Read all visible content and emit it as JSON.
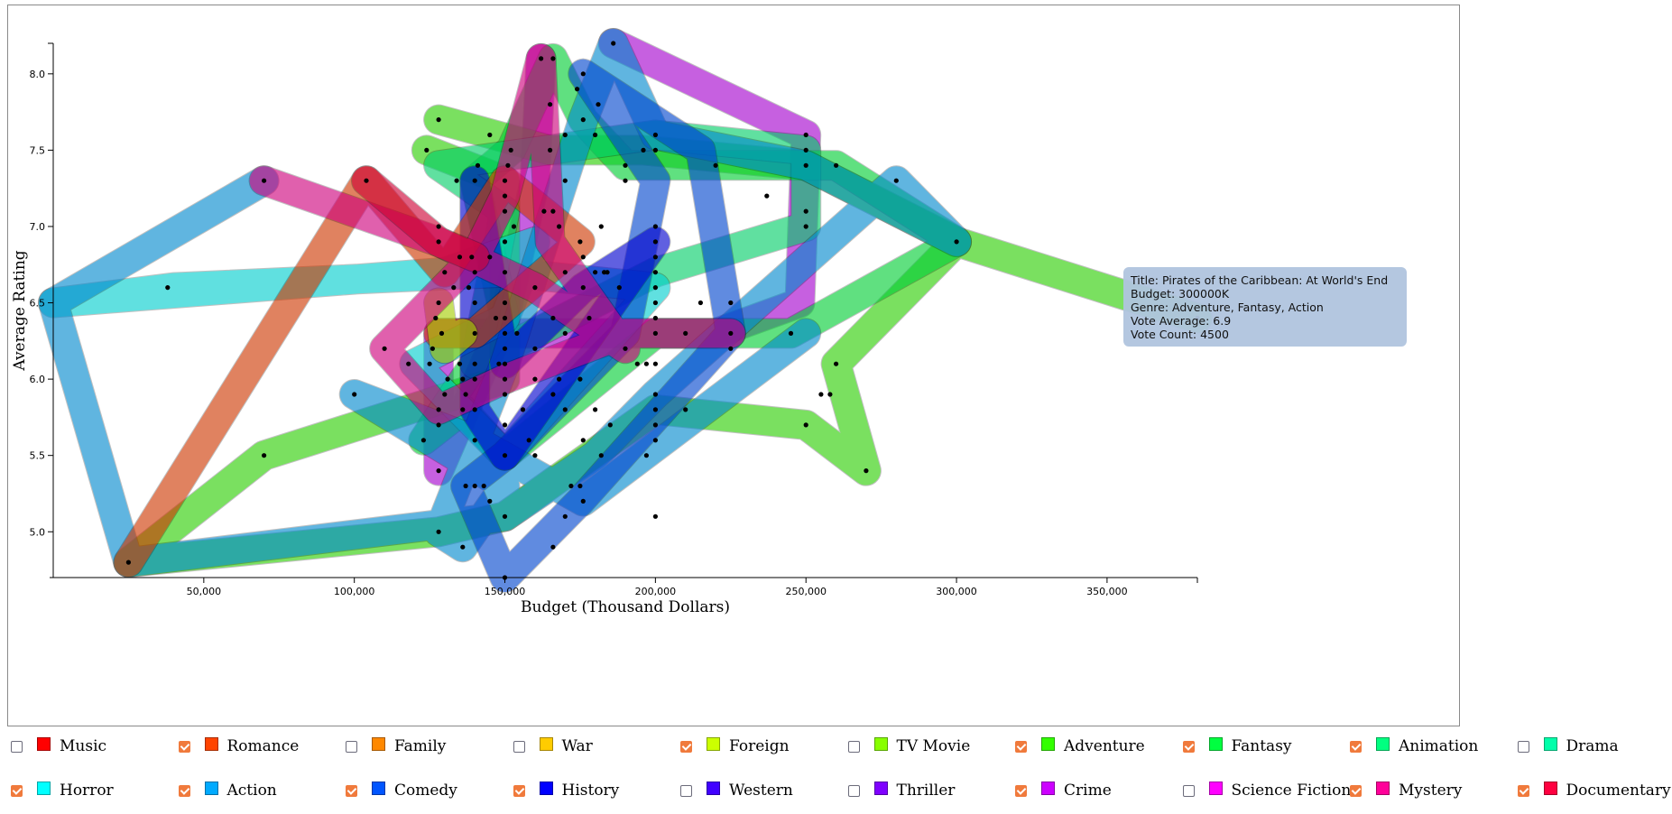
{
  "chart_data": {
    "type": "scatter",
    "xlabel": "Budget (Thousand Dollars)",
    "ylabel": "Average Rating",
    "xlim": [
      0,
      380000
    ],
    "ylim": [
      4.7,
      8.2
    ],
    "x_ticks": [
      50000,
      100000,
      150000,
      200000,
      250000,
      300000,
      350000
    ],
    "x_tick_labels": [
      "50,000",
      "100,000",
      "150,000",
      "200,000",
      "250,000",
      "300,000",
      "350,000"
    ],
    "y_ticks": [
      5.0,
      5.5,
      6.0,
      6.5,
      7.0,
      7.5,
      8.0
    ],
    "y_tick_labels": [
      "5.0",
      "5.5",
      "6.0",
      "6.5",
      "7.0",
      "7.5",
      "8.0"
    ],
    "grid": false,
    "points": [
      [
        25000,
        4.8
      ],
      [
        38000,
        6.6
      ],
      [
        70000,
        7.3
      ],
      [
        70000,
        5.5
      ],
      [
        100000,
        5.9
      ],
      [
        104000,
        7.3
      ],
      [
        110000,
        6.2
      ],
      [
        118000,
        6.1
      ],
      [
        123000,
        5.6
      ],
      [
        124000,
        7.5
      ],
      [
        125000,
        6.1
      ],
      [
        126000,
        6.2
      ],
      [
        127000,
        6.4
      ],
      [
        128000,
        5.0
      ],
      [
        128000,
        7.7
      ],
      [
        128000,
        5.4
      ],
      [
        128000,
        6.9
      ],
      [
        128000,
        7.0
      ],
      [
        128000,
        6.5
      ],
      [
        128000,
        5.8
      ],
      [
        128000,
        5.7
      ],
      [
        129000,
        6.3
      ],
      [
        130000,
        5.9
      ],
      [
        130000,
        6.7
      ],
      [
        131000,
        6.0
      ],
      [
        133000,
        6.6
      ],
      [
        134000,
        7.3
      ],
      [
        135000,
        6.8
      ],
      [
        135000,
        6.1
      ],
      [
        136000,
        4.9
      ],
      [
        136000,
        6.0
      ],
      [
        136000,
        5.8
      ],
      [
        137000,
        5.9
      ],
      [
        137000,
        5.3
      ],
      [
        138000,
        6.6
      ],
      [
        139000,
        6.8
      ],
      [
        140000,
        7.3
      ],
      [
        140000,
        6.7
      ],
      [
        140000,
        6.5
      ],
      [
        140000,
        6.3
      ],
      [
        140000,
        6.1
      ],
      [
        140000,
        6.0
      ],
      [
        140000,
        5.8
      ],
      [
        140000,
        5.6
      ],
      [
        140000,
        5.3
      ],
      [
        141000,
        7.4
      ],
      [
        143000,
        5.3
      ],
      [
        145000,
        7.6
      ],
      [
        145000,
        6.8
      ],
      [
        145000,
        5.2
      ],
      [
        147000,
        6.4
      ],
      [
        148000,
        6.1
      ],
      [
        150000,
        7.3
      ],
      [
        150000,
        7.2
      ],
      [
        150000,
        7.1
      ],
      [
        150000,
        6.9
      ],
      [
        150000,
        6.7
      ],
      [
        150000,
        6.5
      ],
      [
        150000,
        6.4
      ],
      [
        150000,
        6.3
      ],
      [
        150000,
        6.2
      ],
      [
        150000,
        6.1
      ],
      [
        150000,
        6.0
      ],
      [
        150000,
        5.9
      ],
      [
        150000,
        5.7
      ],
      [
        150000,
        5.5
      ],
      [
        150000,
        5.1
      ],
      [
        150000,
        4.7
      ],
      [
        151000,
        7.4
      ],
      [
        152000,
        7.5
      ],
      [
        153000,
        7.0
      ],
      [
        154000,
        6.3
      ],
      [
        156000,
        5.8
      ],
      [
        158000,
        5.6
      ],
      [
        160000,
        6.6
      ],
      [
        160000,
        6.2
      ],
      [
        160000,
        6.0
      ],
      [
        160000,
        5.5
      ],
      [
        162000,
        8.1
      ],
      [
        163000,
        7.1
      ],
      [
        165000,
        7.8
      ],
      [
        165000,
        7.5
      ],
      [
        166000,
        8.1
      ],
      [
        166000,
        7.1
      ],
      [
        166000,
        6.4
      ],
      [
        166000,
        5.9
      ],
      [
        166000,
        4.9
      ],
      [
        168000,
        7.0
      ],
      [
        168000,
        6.0
      ],
      [
        170000,
        7.6
      ],
      [
        170000,
        7.3
      ],
      [
        170000,
        6.7
      ],
      [
        170000,
        6.3
      ],
      [
        170000,
        5.8
      ],
      [
        170000,
        5.1
      ],
      [
        172000,
        5.3
      ],
      [
        174000,
        7.9
      ],
      [
        175000,
        6.0
      ],
      [
        175000,
        6.9
      ],
      [
        175000,
        5.3
      ],
      [
        176000,
        8.0
      ],
      [
        176000,
        7.7
      ],
      [
        176000,
        6.8
      ],
      [
        176000,
        6.6
      ],
      [
        176000,
        5.6
      ],
      [
        176000,
        5.2
      ],
      [
        178000,
        6.4
      ],
      [
        180000,
        7.6
      ],
      [
        180000,
        5.8
      ],
      [
        180000,
        6.7
      ],
      [
        181000,
        7.8
      ],
      [
        182000,
        7.0
      ],
      [
        182000,
        5.5
      ],
      [
        183000,
        6.7
      ],
      [
        184000,
        6.7
      ],
      [
        185000,
        5.7
      ],
      [
        186000,
        8.2
      ],
      [
        188000,
        6.6
      ],
      [
        190000,
        7.4
      ],
      [
        190000,
        7.3
      ],
      [
        190000,
        6.2
      ],
      [
        194000,
        6.1
      ],
      [
        196000,
        7.5
      ],
      [
        197000,
        6.1
      ],
      [
        197000,
        5.5
      ],
      [
        200000,
        7.6
      ],
      [
        200000,
        7.0
      ],
      [
        200000,
        6.9
      ],
      [
        200000,
        6.8
      ],
      [
        200000,
        6.7
      ],
      [
        200000,
        6.6
      ],
      [
        200000,
        6.5
      ],
      [
        200000,
        6.4
      ],
      [
        200000,
        6.3
      ],
      [
        200000,
        6.1
      ],
      [
        200000,
        5.9
      ],
      [
        200000,
        5.8
      ],
      [
        200000,
        5.7
      ],
      [
        200000,
        5.6
      ],
      [
        200000,
        5.1
      ],
      [
        200000,
        7.5
      ],
      [
        210000,
        6.3
      ],
      [
        210000,
        5.8
      ],
      [
        215000,
        6.5
      ],
      [
        220000,
        7.4
      ],
      [
        225000,
        6.2
      ],
      [
        225000,
        6.3
      ],
      [
        225000,
        6.5
      ],
      [
        237000,
        7.2
      ],
      [
        245000,
        6.3
      ],
      [
        250000,
        7.6
      ],
      [
        250000,
        7.5
      ],
      [
        250000,
        7.4
      ],
      [
        250000,
        7.1
      ],
      [
        250000,
        7.0
      ],
      [
        250000,
        5.7
      ],
      [
        255000,
        5.9
      ],
      [
        258000,
        5.9
      ],
      [
        260000,
        6.1
      ],
      [
        260000,
        7.4
      ],
      [
        270000,
        5.4
      ],
      [
        280000,
        7.3
      ],
      [
        300000,
        6.9
      ],
      [
        380000,
        6.4
      ]
    ],
    "series": [
      {
        "name": "Crime",
        "color": "#cc00ff",
        "visible": true,
        "path": [
          [
            186000,
            8.2
          ],
          [
            250000,
            7.6
          ],
          [
            248000,
            6.5
          ],
          [
            220000,
            6.3
          ],
          [
            128000,
            6.3
          ],
          [
            128000,
            5.4
          ],
          [
            150000,
            6.4
          ],
          [
            160000,
            7.3
          ],
          [
            162000,
            8.1
          ]
        ]
      },
      {
        "name": "Adventure",
        "color": "#33ff00",
        "visible": true,
        "path": [
          [
            128000,
            7.7
          ],
          [
            165000,
            7.5
          ],
          [
            196000,
            7.5
          ],
          [
            250000,
            7.4
          ],
          [
            300000,
            6.9
          ],
          [
            380000,
            6.4
          ],
          [
            300000,
            6.9
          ],
          [
            260000,
            6.1
          ],
          [
            270000,
            5.4
          ],
          [
            250000,
            5.7
          ],
          [
            200000,
            5.8
          ],
          [
            150000,
            5.1
          ],
          [
            128000,
            5.0
          ],
          [
            25000,
            4.8
          ],
          [
            70000,
            5.5
          ],
          [
            150000,
            6.0
          ],
          [
            150000,
            7.3
          ],
          [
            124000,
            7.5
          ]
        ]
      },
      {
        "name": "Fantasy",
        "color": "#00ff40",
        "visible": true,
        "path": [
          [
            166000,
            8.1
          ],
          [
            176000,
            7.7
          ],
          [
            190000,
            7.4
          ],
          [
            260000,
            7.4
          ],
          [
            300000,
            6.9
          ],
          [
            245000,
            6.3
          ],
          [
            200000,
            6.3
          ],
          [
            150000,
            5.5
          ],
          [
            136000,
            5.8
          ],
          [
            123000,
            5.6
          ],
          [
            150000,
            6.4
          ],
          [
            140000,
            7.3
          ],
          [
            152000,
            7.5
          ],
          [
            166000,
            8.1
          ]
        ]
      },
      {
        "name": "Animation",
        "color": "#00ff80",
        "visible": true,
        "path": [
          [
            128000,
            7.4
          ],
          [
            200000,
            7.6
          ],
          [
            250000,
            7.5
          ],
          [
            250000,
            7.0
          ],
          [
            200000,
            6.7
          ],
          [
            150000,
            6.2
          ],
          [
            140000,
            6.1
          ],
          [
            150000,
            7.1
          ],
          [
            128000,
            7.4
          ]
        ]
      },
      {
        "name": "Horror",
        "color": "#00ffff",
        "visible": true,
        "path": [
          [
            0,
            6.5
          ],
          [
            40000,
            6.6
          ],
          [
            150000,
            6.7
          ],
          [
            200000,
            6.6
          ],
          [
            150000,
            5.5
          ],
          [
            120000,
            6.1
          ],
          [
            150000,
            6.4
          ],
          [
            160000,
            6.9
          ],
          [
            130000,
            6.7
          ],
          [
            0,
            6.5
          ]
        ]
      },
      {
        "name": "Action",
        "color": "#00aaff",
        "visible": true,
        "path": [
          [
            70000,
            7.3
          ],
          [
            0,
            6.5
          ],
          [
            25000,
            4.8
          ],
          [
            150000,
            5.1
          ],
          [
            180000,
            5.5
          ],
          [
            200000,
            5.9
          ],
          [
            280000,
            7.3
          ],
          [
            300000,
            6.9
          ],
          [
            250000,
            7.4
          ],
          [
            200000,
            7.6
          ],
          [
            186000,
            8.2
          ],
          [
            176000,
            7.7
          ],
          [
            150000,
            6.1
          ],
          [
            128000,
            5.0
          ],
          [
            136000,
            4.9
          ],
          [
            150000,
            5.3
          ],
          [
            100000,
            5.9
          ],
          [
            140000,
            5.6
          ],
          [
            176000,
            5.2
          ],
          [
            250000,
            6.3
          ]
        ]
      },
      {
        "name": "Comedy",
        "color": "#0055ff",
        "visible": true,
        "path": [
          [
            176000,
            8.0
          ],
          [
            200000,
            7.3
          ],
          [
            190000,
            6.3
          ],
          [
            150000,
            5.5
          ],
          [
            137000,
            5.3
          ],
          [
            150000,
            4.7
          ],
          [
            175000,
            5.2
          ],
          [
            225000,
            6.3
          ],
          [
            215000,
            7.5
          ],
          [
            176000,
            8.0
          ]
        ]
      },
      {
        "name": "History",
        "color": "#0000ff",
        "visible": true,
        "path": [
          [
            140000,
            7.3
          ],
          [
            140000,
            5.8
          ],
          [
            150000,
            5.5
          ],
          [
            200000,
            6.9
          ],
          [
            176000,
            6.6
          ],
          [
            150000,
            6.1
          ],
          [
            140000,
            7.3
          ]
        ]
      },
      {
        "name": "Romance",
        "color": "#ff4400",
        "visible": true,
        "path": [
          [
            25000,
            4.8
          ],
          [
            104000,
            7.3
          ],
          [
            130000,
            6.7
          ],
          [
            150000,
            7.3
          ],
          [
            175000,
            6.9
          ],
          [
            140000,
            6.3
          ],
          [
            128000,
            6.3
          ]
        ]
      },
      {
        "name": "Foreign",
        "color": "#ccff00",
        "visible": true,
        "path": [
          [
            128000,
            6.5
          ],
          [
            130000,
            6.2
          ],
          [
            136000,
            6.3
          ]
        ]
      },
      {
        "name": "Mystery",
        "color": "#ff0099",
        "visible": true,
        "path": [
          [
            70000,
            7.3
          ],
          [
            128000,
            6.9
          ],
          [
            160000,
            6.6
          ],
          [
            190000,
            6.2
          ],
          [
            165000,
            6.9
          ],
          [
            162000,
            8.1
          ],
          [
            150000,
            7.2
          ],
          [
            140000,
            6.8
          ],
          [
            110000,
            6.2
          ],
          [
            128000,
            5.8
          ],
          [
            150000,
            6.0
          ],
          [
            190000,
            6.3
          ],
          [
            225000,
            6.3
          ]
        ]
      },
      {
        "name": "Documentary",
        "color": "#ff0040",
        "visible": true,
        "path": [
          [
            104000,
            7.3
          ],
          [
            128000,
            6.9
          ],
          [
            140000,
            6.8
          ]
        ]
      },
      {
        "name": "Drama",
        "color": "#00ffaa",
        "visible": false,
        "path": []
      },
      {
        "name": "Thriller",
        "color": "#7f00ff",
        "visible": false,
        "path": []
      }
    ]
  },
  "tooltip": {
    "title": "Title: Pirates of the Caribbean: At World's End",
    "budget": "Budget: 300000K",
    "genre": "Genre: Adventure, Fantasy, Action",
    "vote_average": "Vote Average: 6.9",
    "vote_count": "Vote Count: 4500"
  },
  "legend": [
    {
      "label": "Music",
      "color": "#ff0000",
      "checked": false
    },
    {
      "label": "Romance",
      "color": "#ff4400",
      "checked": true
    },
    {
      "label": "Family",
      "color": "#ff8800",
      "checked": false
    },
    {
      "label": "War",
      "color": "#ffcc00",
      "checked": false
    },
    {
      "label": "Foreign",
      "color": "#ccff00",
      "checked": true
    },
    {
      "label": "TV Movie",
      "color": "#88ff00",
      "checked": false
    },
    {
      "label": "Adventure",
      "color": "#33ff00",
      "checked": true
    },
    {
      "label": "Fantasy",
      "color": "#00ff40",
      "checked": true
    },
    {
      "label": "Animation",
      "color": "#00ff80",
      "checked": true
    },
    {
      "label": "Drama",
      "color": "#00ffaa",
      "checked": false
    },
    {
      "label": "Horror",
      "color": "#00ffff",
      "checked": true
    },
    {
      "label": "Action",
      "color": "#00aaff",
      "checked": true
    },
    {
      "label": "Comedy",
      "color": "#0055ff",
      "checked": true
    },
    {
      "label": "History",
      "color": "#0000ff",
      "checked": true
    },
    {
      "label": "Western",
      "color": "#4000ff",
      "checked": false
    },
    {
      "label": "Thriller",
      "color": "#7f00ff",
      "checked": false
    },
    {
      "label": "Crime",
      "color": "#cc00ff",
      "checked": true
    },
    {
      "label": "Science Fiction",
      "color": "#ff00ff",
      "checked": false
    },
    {
      "label": "Mystery",
      "color": "#ff0099",
      "checked": true
    },
    {
      "label": "Documentary",
      "color": "#ff0040",
      "checked": true
    }
  ]
}
